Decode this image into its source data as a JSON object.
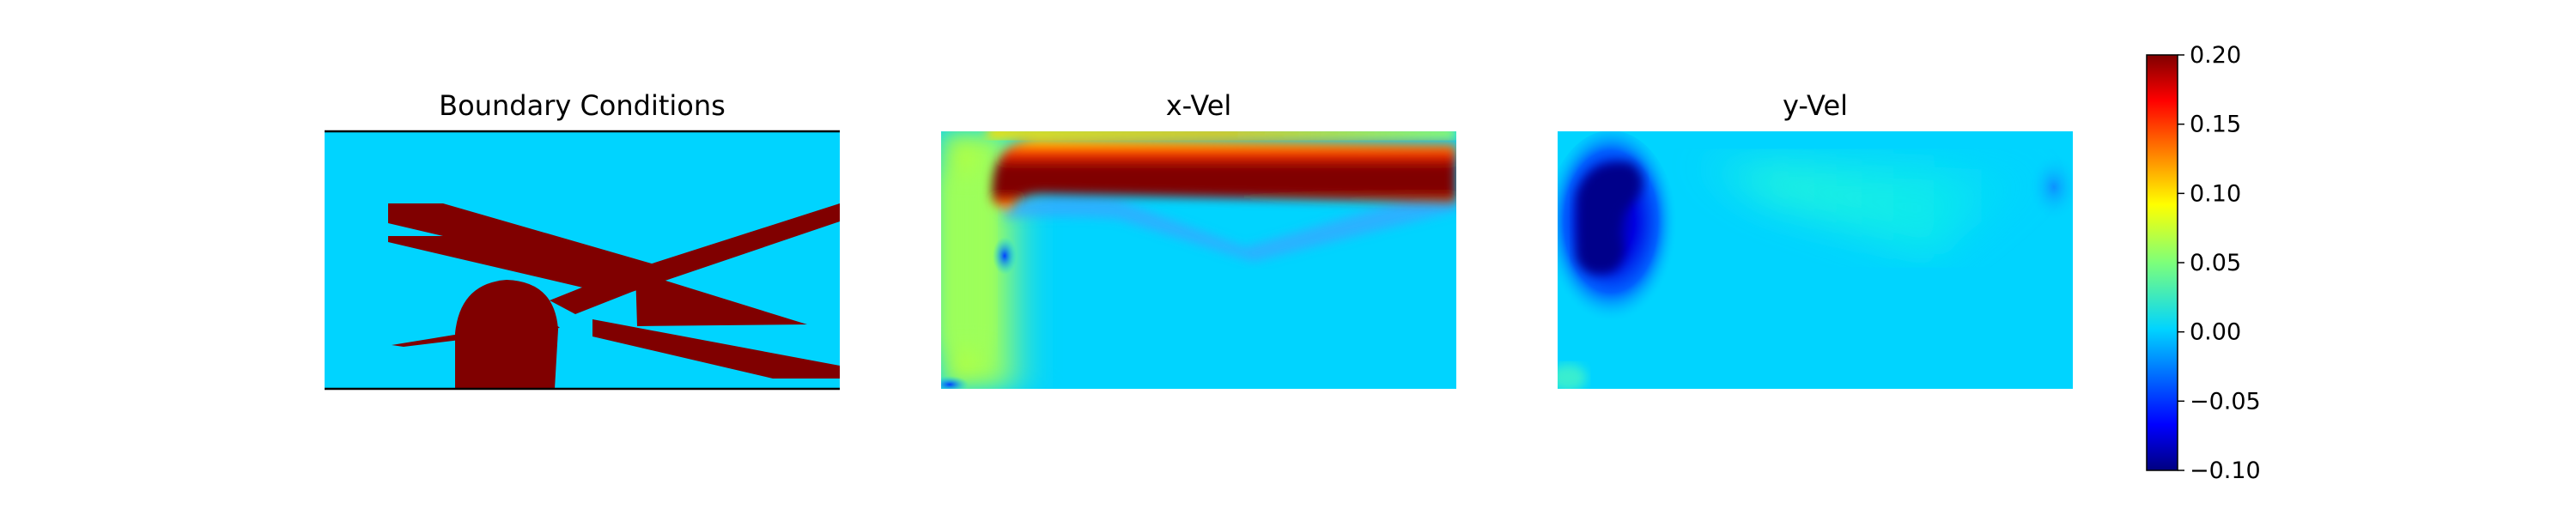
{
  "chart_data": [
    {
      "type": "heatmap",
      "title": "Boundary Conditions",
      "fields": {
        "fluid": "#00d4ff",
        "obstacle": "#800000",
        "obstacle_shapes": [
          "upper-left crossing bar",
          "upper-right crossing bar",
          "lower-left bar",
          "lower-right bar",
          "rounded block at bottom"
        ]
      },
      "axes_frame": "top and bottom edges only"
    },
    {
      "type": "heatmap",
      "title": "x-Vel",
      "description_features": [
        "strong jet along top (max ~0.2)",
        "moderate flow on left side (~0.07)",
        "slight negative shear band below jet"
      ]
    },
    {
      "type": "heatmap",
      "title": "y-Vel",
      "description_features": [
        "strong negative region at left (~-0.1)",
        "weak positive band in upper middle (~0.03)",
        "near-zero elsewhere"
      ]
    }
  ],
  "colorbar": {
    "colormap": "jet",
    "vmin": -0.1,
    "vmax": 0.2,
    "ticks": [
      "0.20",
      "0.15",
      "0.10",
      "0.05",
      "0.00",
      "−0.05",
      "−0.10"
    ],
    "tick_values": [
      0.2,
      0.15,
      0.1,
      0.05,
      0.0,
      -0.05,
      -0.1
    ]
  },
  "colors": {
    "jet_dark_red": "#800000",
    "jet_red": "#ff0000",
    "jet_yellow": "#ffff00",
    "jet_green": "#80ff80",
    "jet_cyan": "#00d4ff",
    "jet_blue": "#0000ff",
    "jet_dark_blue": "#000080"
  }
}
